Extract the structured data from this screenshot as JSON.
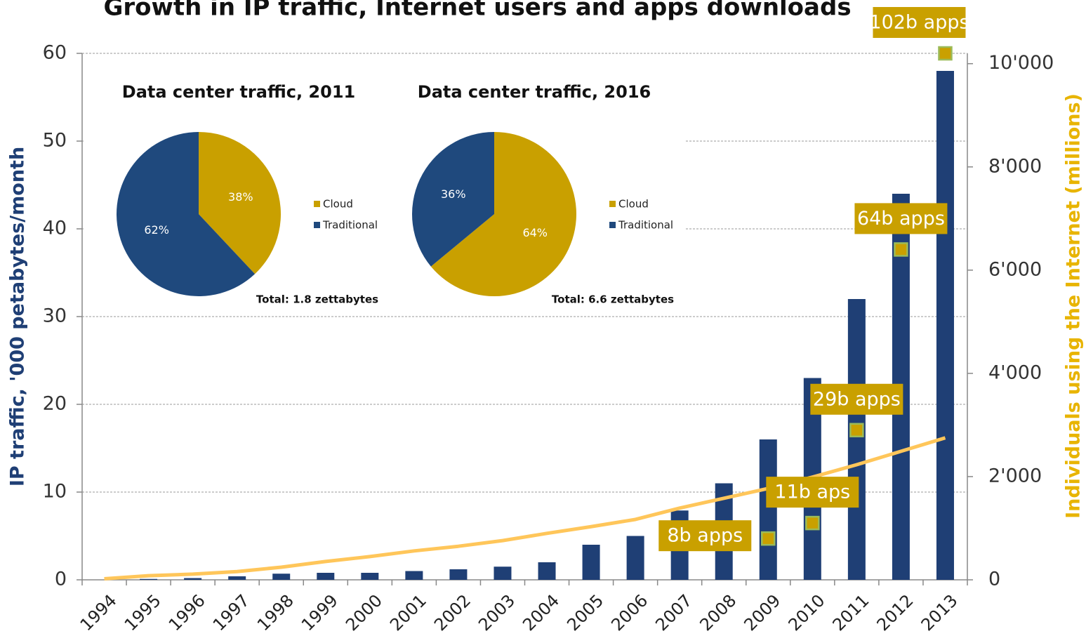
{
  "chart_data": [
    {
      "type": "bar",
      "title": "Growth in IP traffic, Internet users and apps downloads",
      "ylabel": "IP traffic, '000 petabytes/month",
      "y2label": "Individuals using the Internet (millions)",
      "categories": [
        "1994",
        "1995",
        "1996",
        "1997",
        "1998",
        "1999",
        "2000",
        "2001",
        "2002",
        "2003",
        "2004",
        "2005",
        "2006",
        "2007",
        "2008",
        "2009",
        "2010",
        "2011",
        "2012",
        "2013"
      ],
      "series": [
        {
          "type": "bar",
          "color": "#1f3f75",
          "values": [
            0,
            0.1,
            0.2,
            0.4,
            0.7,
            0.8,
            0.8,
            1.0,
            1.2,
            1.5,
            2.0,
            4.0,
            5.0,
            7.9,
            11,
            16,
            23,
            32,
            44,
            58
          ]
        },
        {
          "type": "line",
          "axis": "y2",
          "color": "#ffc65a",
          "values": [
            20,
            80,
            110,
            160,
            245,
            355,
            450,
            560,
            650,
            760,
            900,
            1030,
            1170,
            1390,
            1580,
            1770,
            1990,
            2230,
            2490,
            2750
          ]
        },
        {
          "type": "marker",
          "axis": "y2",
          "color": "#c9a000",
          "values": [
            null,
            null,
            null,
            null,
            null,
            null,
            null,
            null,
            null,
            null,
            null,
            null,
            null,
            null,
            null,
            800,
            1100,
            2900,
            6400,
            10200
          ],
          "value_labels": [
            null,
            null,
            null,
            null,
            null,
            null,
            null,
            null,
            null,
            null,
            null,
            null,
            null,
            null,
            null,
            "8b apps",
            "11b aps",
            "29b apps",
            "64b apps",
            "102b apps"
          ]
        }
      ],
      "ylim": [
        0,
        60
      ],
      "yticks": [
        0,
        10,
        20,
        30,
        40,
        50,
        60
      ],
      "y2lim": [
        0,
        10200
      ],
      "y2ticks": [
        0,
        {
          "value": 2000,
          "label": "2'000"
        },
        {
          "value": 4000,
          "label": "4'000"
        },
        {
          "value": 6000,
          "label": "6'000"
        },
        {
          "value": 8000,
          "label": "8'000"
        },
        {
          "value": 10000,
          "label": "10'000"
        }
      ],
      "grid": true
    },
    {
      "type": "pie",
      "title": "Data center traffic, 2011",
      "categories": [
        "Cloud",
        "Traditional"
      ],
      "values": [
        38,
        62
      ],
      "value_labels": [
        "38%",
        "62%"
      ],
      "colors": [
        "#c9a000",
        "#1f497d"
      ],
      "annotation": "Total: 1.8 zettabytes"
    },
    {
      "type": "pie",
      "title": "Data center traffic, 2016",
      "categories": [
        "Cloud",
        "Traditional"
      ],
      "values": [
        64,
        36
      ],
      "value_labels": [
        "64%",
        "36%"
      ],
      "colors": [
        "#c9a000",
        "#1f497d"
      ],
      "annotation": "Total: 6.6 zettabytes"
    }
  ]
}
